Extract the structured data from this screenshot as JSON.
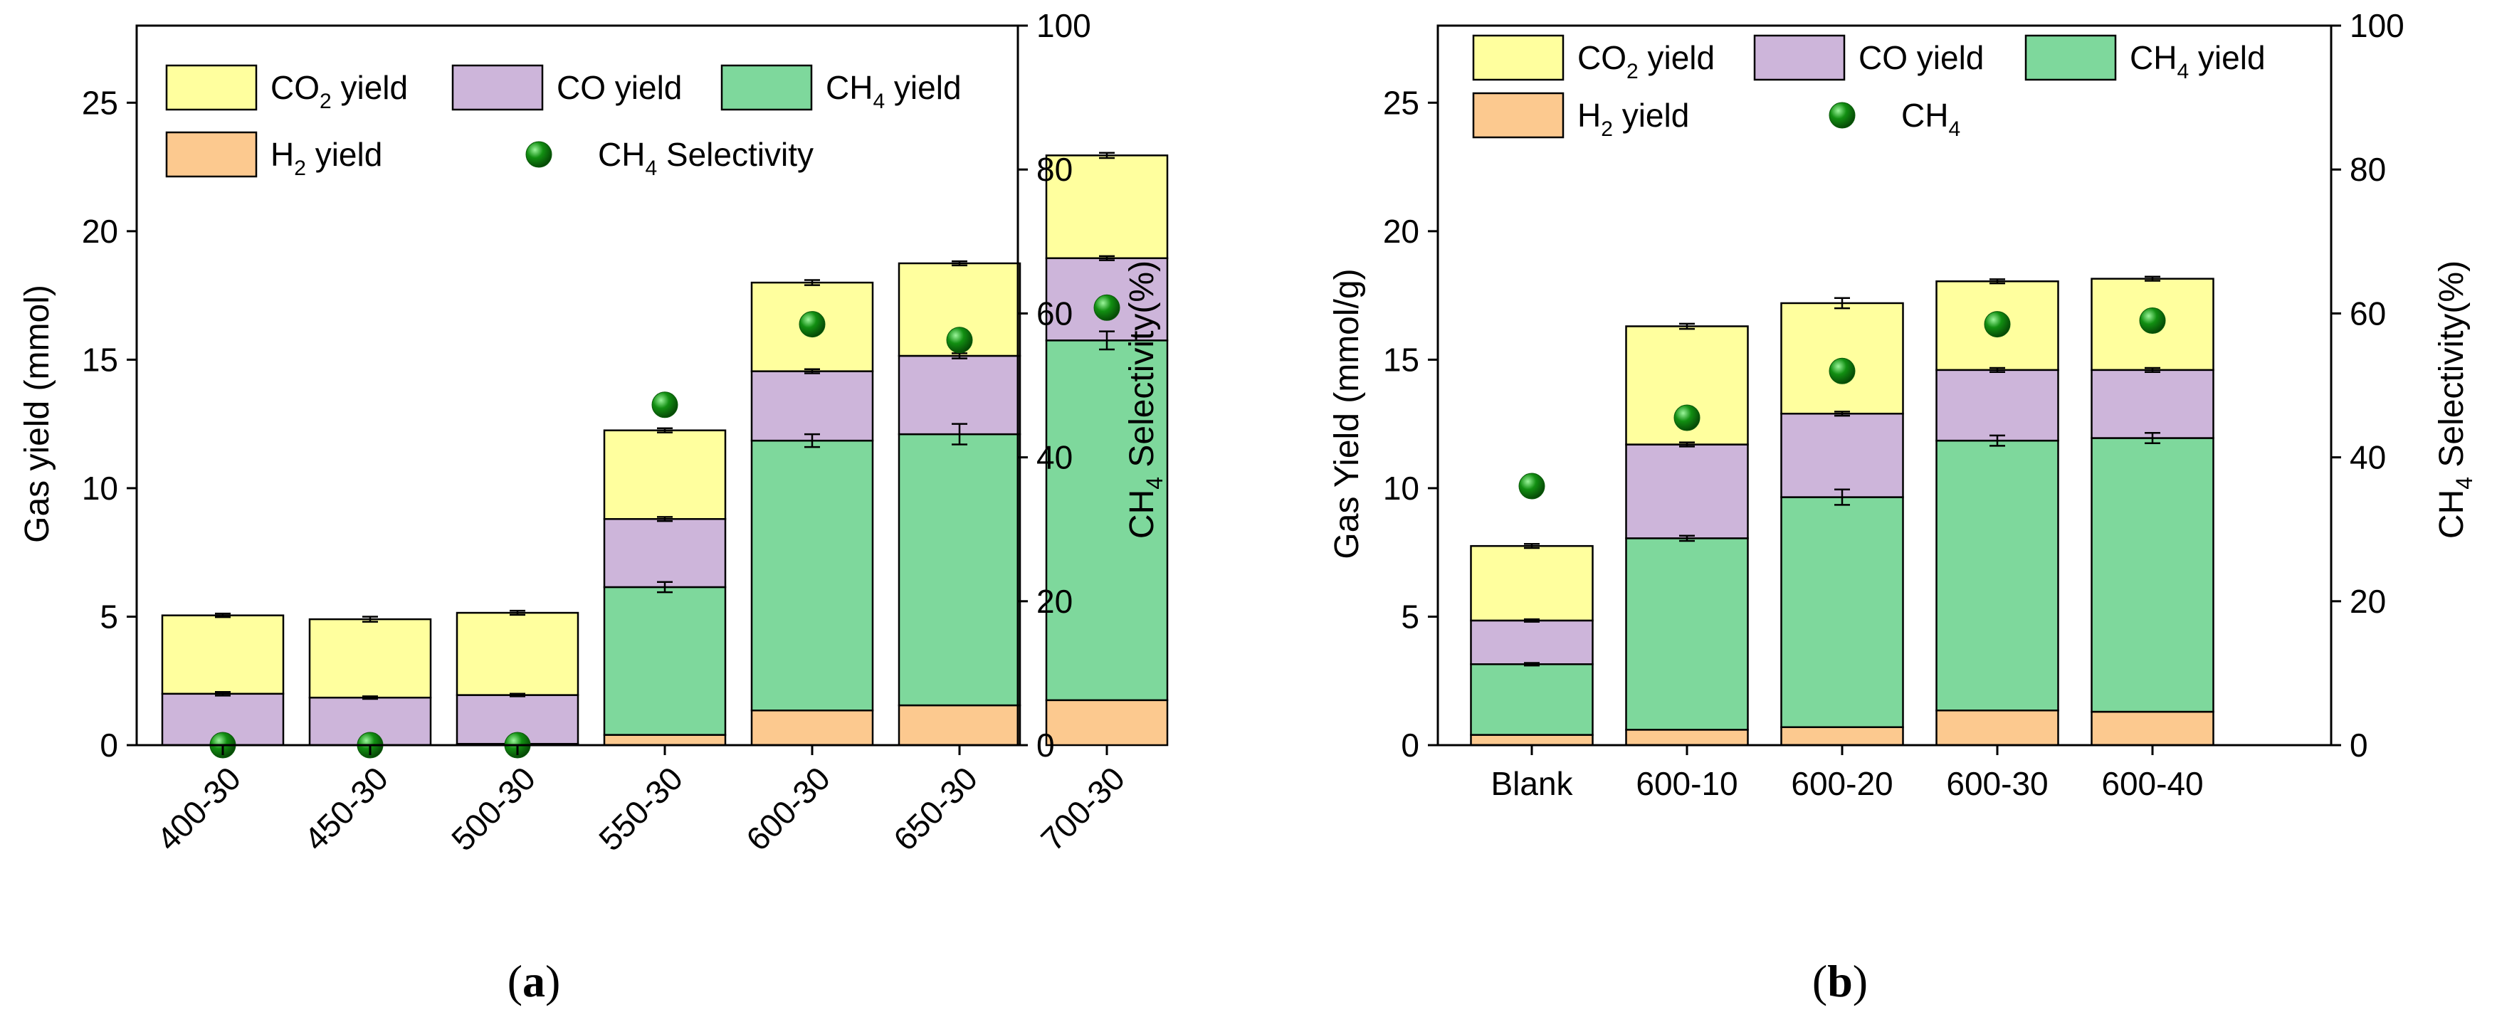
{
  "colors": {
    "h2": "#FCC98F",
    "ch4": "#7ED89C",
    "co": "#CDB5DA",
    "co2": "#FFFF9E",
    "marker": "#128F12"
  },
  "chart_data": [
    {
      "type": "bar",
      "stacked": true,
      "panel_label": "a",
      "ylabel": "Gas yield (mmol)",
      "y2label": "CH4 Selectivity(%)",
      "ylim": [
        0,
        28
      ],
      "yticks": [
        0,
        5,
        10,
        15,
        20,
        25
      ],
      "y2lim": [
        0,
        100
      ],
      "y2ticks": [
        0,
        20,
        40,
        60,
        80,
        100
      ],
      "categories": [
        "400-30",
        "450-30",
        "500-30",
        "550-30",
        "600-30",
        "650-30",
        "700-30"
      ],
      "legend": [
        "CO2 yield",
        "CO yield",
        "CH4 yield",
        "H2 yield",
        "CH4 Selectivity"
      ],
      "series": [
        {
          "name": "H2 yield",
          "values": [
            0.0,
            0.0,
            0.05,
            0.4,
            1.35,
            1.55,
            1.75
          ]
        },
        {
          "name": "CH4 yield",
          "values": [
            0.0,
            0.0,
            0.0,
            5.75,
            10.5,
            10.55,
            14.0
          ]
        },
        {
          "name": "CO yield",
          "values": [
            2.0,
            1.85,
            1.9,
            2.65,
            2.7,
            3.05,
            3.2
          ]
        },
        {
          "name": "CO2 yield",
          "values": [
            3.05,
            3.05,
            3.2,
            3.45,
            3.45,
            3.6,
            4.0
          ]
        }
      ],
      "errors": [
        {
          "name": "CH4 yield",
          "values": [
            0,
            0,
            0,
            0.2,
            0.25,
            0.4,
            0.35
          ]
        },
        {
          "name": "CO yield",
          "values": [
            0.07,
            0.05,
            0.05,
            0.08,
            0.08,
            0.1,
            0.08
          ]
        },
        {
          "name": "CO2 yield",
          "values": [
            0.07,
            0.1,
            0.08,
            0.08,
            0.1,
            0.08,
            0.1
          ]
        }
      ],
      "selectivity": {
        "name": "CH4 Selectivity",
        "axis": "right",
        "values": [
          0.0,
          0.0,
          0.0,
          47.3,
          58.5,
          56.3,
          60.8
        ]
      }
    },
    {
      "type": "bar",
      "stacked": true,
      "panel_label": "b",
      "ylabel": "Gas Yield (mmol/g)",
      "y2label": "CH4 Selectivity(%)",
      "ylim": [
        0,
        28
      ],
      "yticks": [
        0,
        5,
        10,
        15,
        20,
        25
      ],
      "y2lim": [
        0,
        100
      ],
      "y2ticks": [
        0,
        20,
        40,
        60,
        80,
        100
      ],
      "categories": [
        "Blank",
        "600-10",
        "600-20",
        "600-30",
        "600-40"
      ],
      "legend": [
        "CO2 yield",
        "CO yield",
        "CH4 yield",
        "H2 yield",
        "CH4"
      ],
      "series": [
        {
          "name": "H2 yield",
          "values": [
            0.4,
            0.6,
            0.7,
            1.35,
            1.3
          ]
        },
        {
          "name": "CH4 yield",
          "values": [
            2.75,
            7.45,
            8.95,
            10.5,
            10.65
          ]
        },
        {
          "name": "CO yield",
          "values": [
            1.7,
            3.65,
            3.25,
            2.75,
            2.65
          ]
        },
        {
          "name": "CO2 yield",
          "values": [
            2.9,
            4.6,
            4.3,
            3.45,
            3.55
          ]
        }
      ],
      "errors": [
        {
          "name": "CH4 yield",
          "values": [
            0.05,
            0.1,
            0.3,
            0.2,
            0.2
          ]
        },
        {
          "name": "CO yield",
          "values": [
            0.05,
            0.08,
            0.08,
            0.08,
            0.08
          ]
        },
        {
          "name": "CO2 yield",
          "values": [
            0.08,
            0.1,
            0.2,
            0.08,
            0.08
          ]
        }
      ],
      "selectivity": {
        "name": "CH4",
        "axis": "right",
        "values": [
          36.0,
          45.5,
          52.0,
          58.5,
          59.0
        ]
      }
    }
  ]
}
